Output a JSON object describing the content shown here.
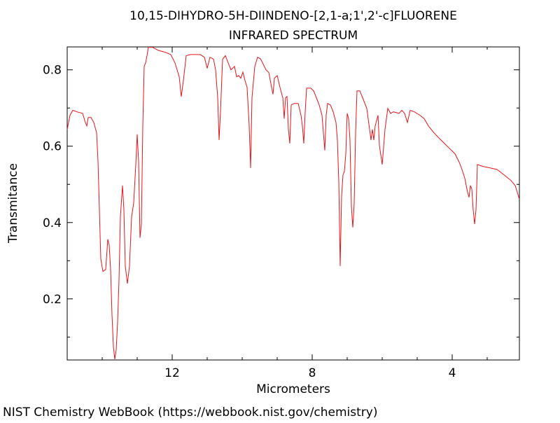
{
  "chart_data": {
    "type": "line",
    "title": "10,15-DIHYDRO-5H-DIINDENO-[2,1-a;1',2'-c]FLUORENE",
    "subtitle": "INFRARED SPECTRUM",
    "x_label": "Micrometers",
    "y_label": "Transmitance",
    "source": "NIST Chemistry WebBook (https://webbook.nist.gov/chemistry)",
    "xlim": [
      15,
      2.08
    ],
    "ylim": [
      0.04,
      0.86
    ],
    "xticks": [
      12,
      8,
      4
    ],
    "yticks": [
      0.2,
      0.4,
      0.6,
      0.8
    ],
    "xminorticks": [
      14,
      13,
      11,
      10,
      9,
      7,
      6,
      5,
      3
    ],
    "yminorticks": [
      0.1,
      0.3,
      0.5,
      0.7
    ],
    "grid": false,
    "x": [
      15.0,
      14.92,
      14.84,
      14.72,
      14.56,
      14.48,
      14.44,
      14.4,
      14.32,
      14.24,
      14.16,
      14.12,
      14.08,
      14.04,
      13.98,
      13.9,
      13.84,
      13.8,
      13.76,
      13.72,
      13.68,
      13.64,
      13.6,
      13.56,
      13.52,
      13.48,
      13.42,
      13.38,
      13.34,
      13.28,
      13.22,
      13.16,
      13.1,
      13.04,
      13.0,
      12.96,
      12.92,
      12.88,
      12.84,
      12.8,
      12.76,
      12.72,
      12.68,
      12.56,
      12.4,
      12.2,
      12.04,
      11.92,
      11.8,
      11.74,
      11.68,
      11.6,
      11.48,
      11.2,
      11.08,
      11.0,
      10.92,
      10.82,
      10.76,
      10.7,
      10.66,
      10.62,
      10.56,
      10.48,
      10.4,
      10.32,
      10.22,
      10.16,
      10.1,
      10.04,
      9.98,
      9.92,
      9.86,
      9.8,
      9.76,
      9.72,
      9.64,
      9.56,
      9.48,
      9.4,
      9.32,
      9.24,
      9.16,
      9.12,
      9.08,
      9.0,
      8.92,
      8.84,
      8.8,
      8.76,
      8.72,
      8.68,
      8.64,
      8.6,
      8.52,
      8.4,
      8.32,
      8.28,
      8.24,
      8.2,
      8.16,
      8.04,
      7.96,
      7.88,
      7.8,
      7.72,
      7.64,
      7.6,
      7.56,
      7.48,
      7.4,
      7.32,
      7.28,
      7.24,
      7.2,
      7.16,
      7.12,
      7.08,
      7.04,
      7.0,
      6.96,
      6.92,
      6.88,
      6.84,
      6.8,
      6.76,
      6.72,
      6.64,
      6.56,
      6.44,
      6.36,
      6.32,
      6.28,
      6.24,
      6.2,
      6.12,
      6.08,
      6.0,
      5.92,
      5.84,
      5.76,
      5.68,
      5.52,
      5.44,
      5.36,
      5.28,
      5.2,
      5.08,
      4.92,
      4.8,
      4.68,
      4.52,
      4.32,
      4.12,
      3.92,
      3.8,
      3.72,
      3.64,
      3.56,
      3.52,
      3.48,
      3.44,
      3.4,
      3.36,
      3.32,
      3.28,
      3.12,
      2.92,
      2.72,
      2.52,
      2.32,
      2.2,
      2.08
    ],
    "series": [
      {
        "color": "#e8141b",
        "values": [
          0.644,
          0.681,
          0.694,
          0.69,
          0.686,
          0.662,
          0.653,
          0.675,
          0.675,
          0.662,
          0.635,
          0.561,
          0.433,
          0.305,
          0.272,
          0.277,
          0.356,
          0.341,
          0.277,
          0.158,
          0.075,
          0.042,
          0.066,
          0.139,
          0.249,
          0.415,
          0.497,
          0.433,
          0.286,
          0.24,
          0.286,
          0.415,
          0.451,
          0.552,
          0.631,
          0.561,
          0.36,
          0.396,
          0.653,
          0.809,
          0.818,
          0.837,
          0.859,
          0.859,
          0.851,
          0.846,
          0.84,
          0.818,
          0.782,
          0.73,
          0.772,
          0.837,
          0.84,
          0.84,
          0.833,
          0.804,
          0.833,
          0.828,
          0.8,
          0.727,
          0.616,
          0.69,
          0.828,
          0.837,
          0.818,
          0.8,
          0.809,
          0.782,
          0.785,
          0.778,
          0.794,
          0.772,
          0.754,
          0.653,
          0.543,
          0.727,
          0.809,
          0.833,
          0.829,
          0.815,
          0.8,
          0.793,
          0.754,
          0.736,
          0.778,
          0.785,
          0.754,
          0.727,
          0.672,
          0.727,
          0.73,
          0.644,
          0.607,
          0.708,
          0.712,
          0.712,
          0.681,
          0.653,
          0.607,
          0.69,
          0.752,
          0.752,
          0.745,
          0.727,
          0.708,
          0.681,
          0.589,
          0.681,
          0.712,
          0.708,
          0.69,
          0.662,
          0.616,
          0.506,
          0.286,
          0.47,
          0.525,
          0.534,
          0.58,
          0.686,
          0.672,
          0.616,
          0.442,
          0.387,
          0.451,
          0.635,
          0.745,
          0.745,
          0.727,
          0.699,
          0.644,
          0.616,
          0.644,
          0.616,
          0.653,
          0.681,
          0.602,
          0.552,
          0.644,
          0.699,
          0.686,
          0.69,
          0.686,
          0.694,
          0.686,
          0.662,
          0.694,
          0.69,
          0.681,
          0.672,
          0.653,
          0.635,
          0.616,
          0.598,
          0.58,
          0.558,
          0.539,
          0.516,
          0.479,
          0.466,
          0.497,
          0.488,
          0.433,
          0.396,
          0.433,
          0.552,
          0.547,
          0.543,
          0.539,
          0.525,
          0.51,
          0.497,
          0.461
        ]
      }
    ]
  }
}
